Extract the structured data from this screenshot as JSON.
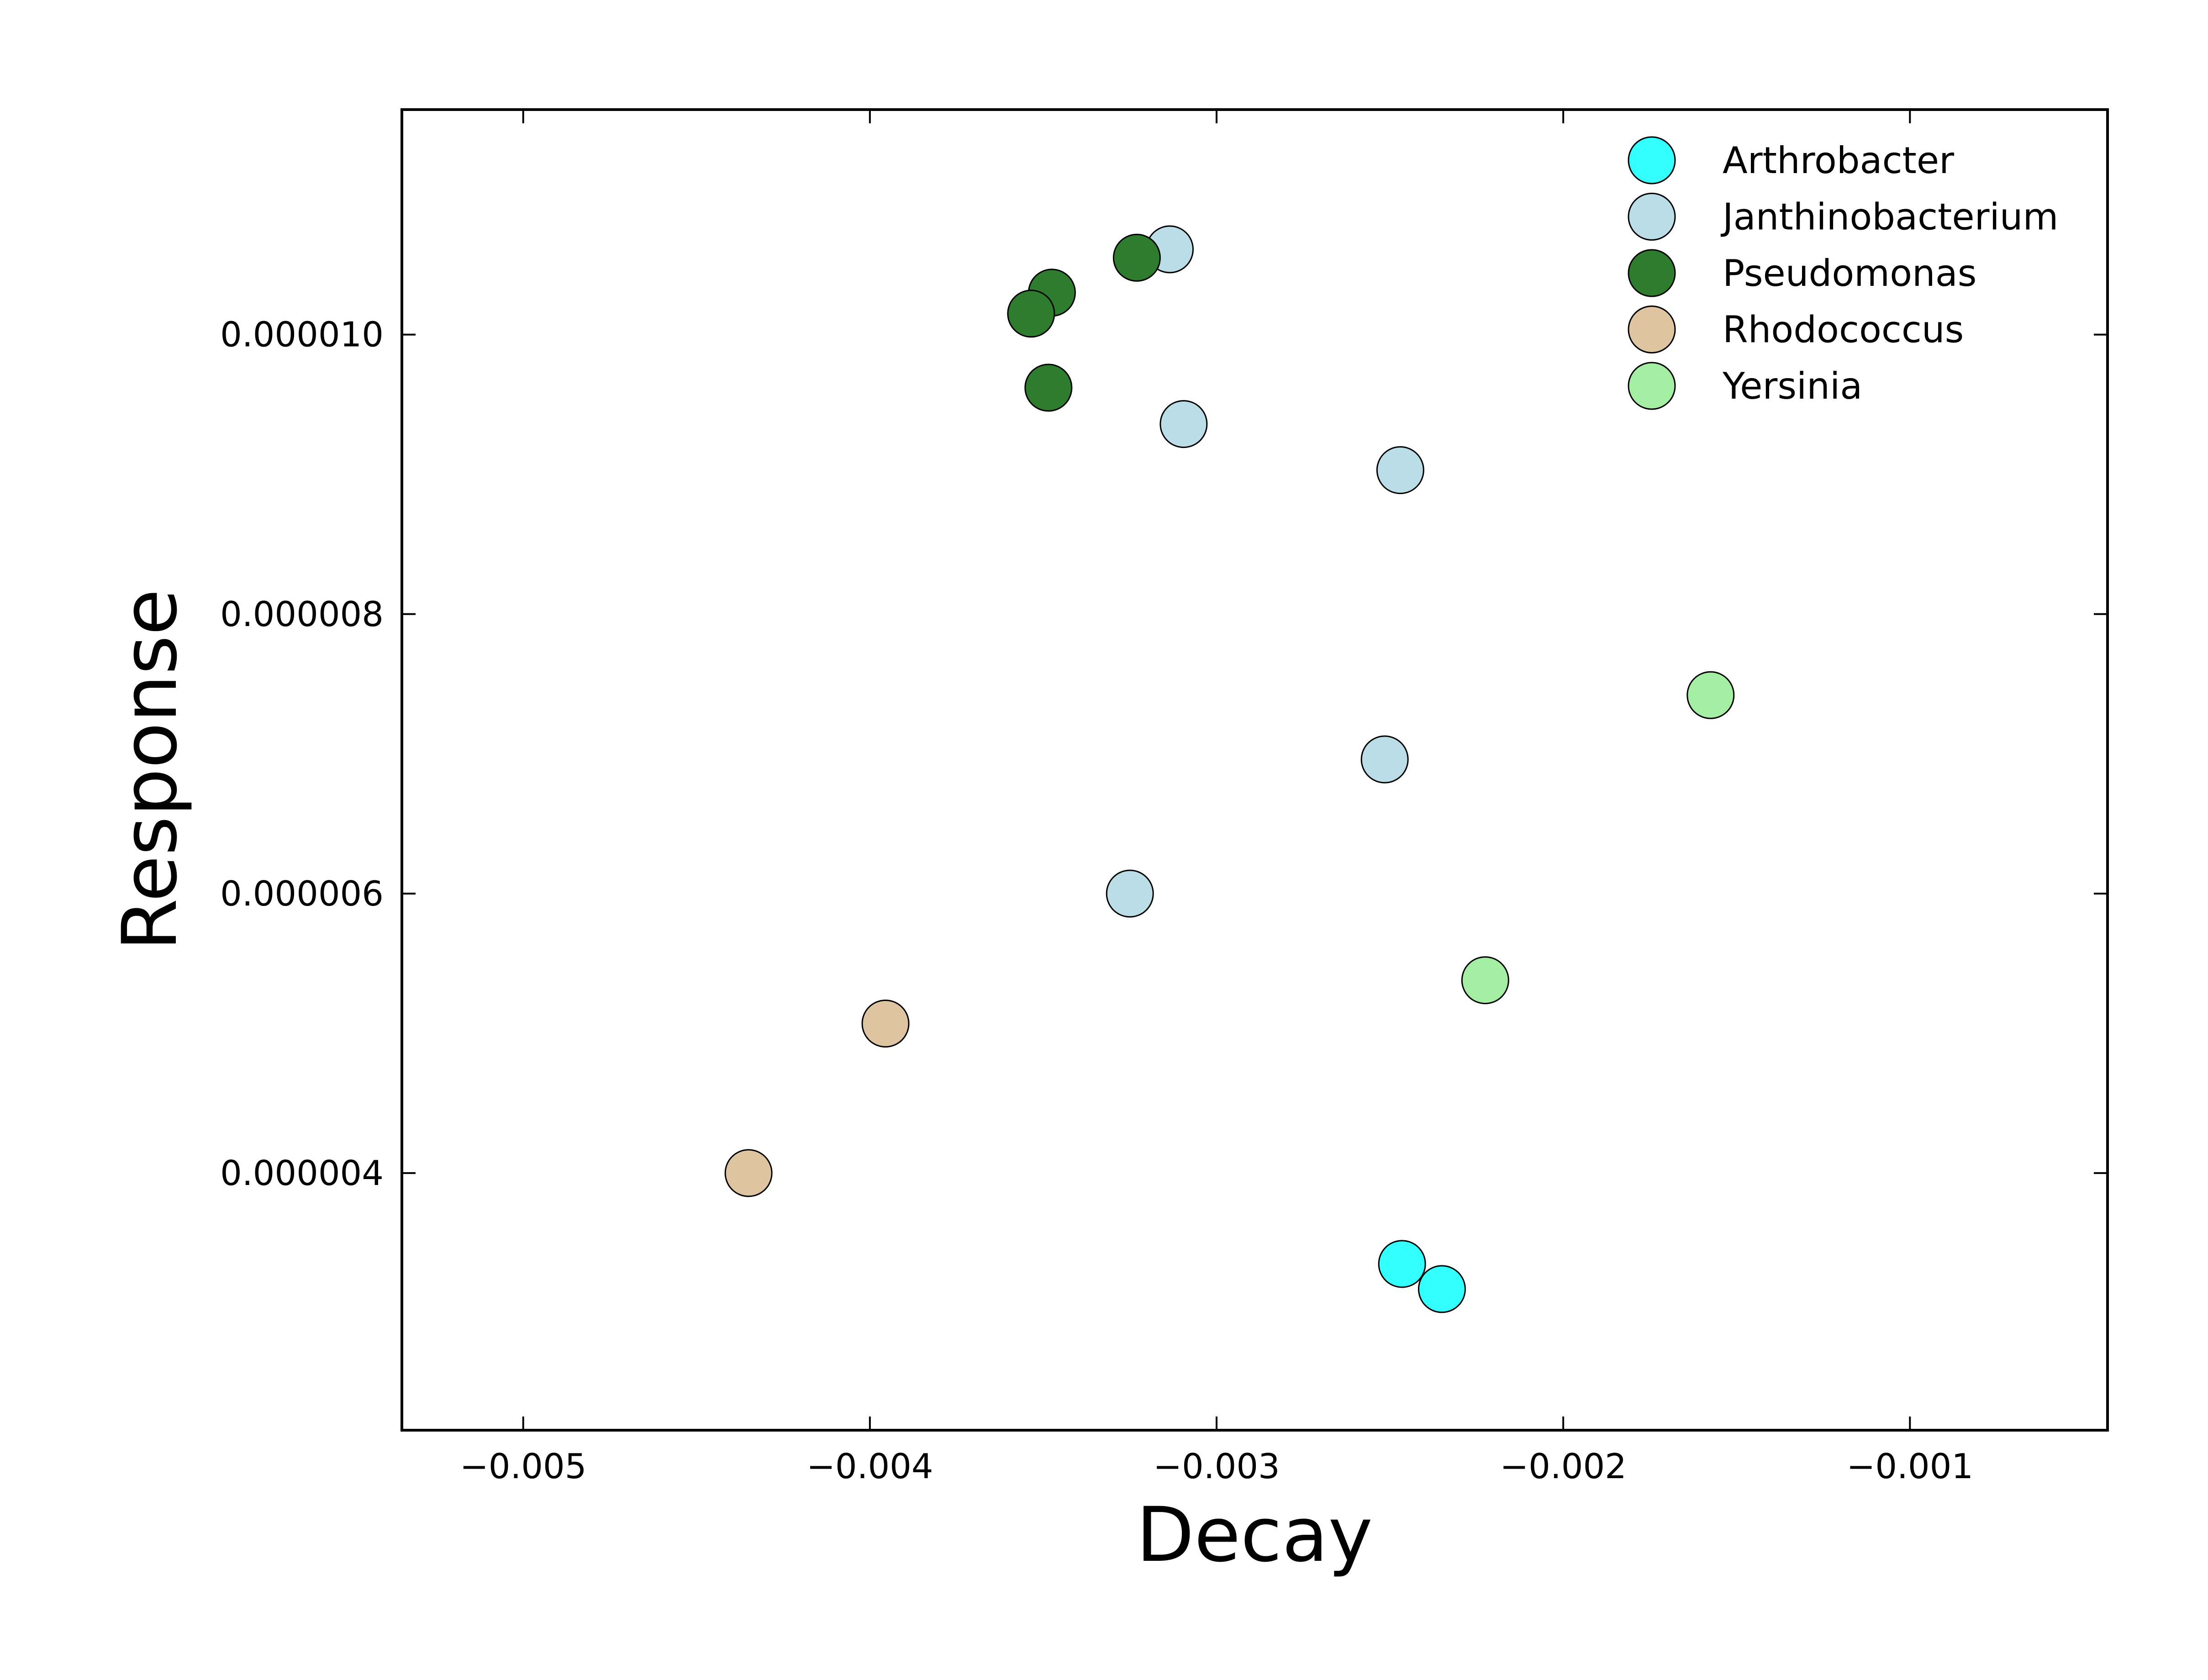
{
  "chart_data": {
    "type": "scatter",
    "title": "",
    "xlabel": "Decay",
    "ylabel": "Response",
    "xlim": [
      -0.00535,
      -0.00043
    ],
    "ylim": [
      2.16e-06,
      1.161e-05
    ],
    "grid": false,
    "legend_position": "top-right",
    "x_ticks": [
      -0.005,
      -0.004,
      -0.003,
      -0.002,
      -0.001
    ],
    "x_tick_labels": [
      "−0.005",
      "−0.004",
      "−0.003",
      "−0.002",
      "−0.001"
    ],
    "y_ticks": [
      4e-06,
      6e-06,
      8e-06,
      1e-05
    ],
    "y_tick_labels": [
      "0.000004",
      "0.000006",
      "0.000008",
      "0.000010"
    ],
    "series": [
      {
        "name": "Arthrobacter",
        "color": "#33ffff",
        "points": [
          {
            "x": -0.002465,
            "y": 3.35e-06
          },
          {
            "x": -0.00235,
            "y": 3.17e-06
          }
        ]
      },
      {
        "name": "Janthinobacterium",
        "color": "#bbdde8",
        "points": [
          {
            "x": -0.003135,
            "y": 1.061e-05
          },
          {
            "x": -0.003095,
            "y": 9.36e-06
          },
          {
            "x": -0.00247,
            "y": 9.03e-06
          },
          {
            "x": -0.002515,
            "y": 6.96e-06
          },
          {
            "x": -0.00325,
            "y": 6e-06
          }
        ]
      },
      {
        "name": "Pseudomonas",
        "color": "#2e7d2e",
        "points": [
          {
            "x": -0.00323,
            "y": 1.055e-05
          },
          {
            "x": -0.003475,
            "y": 1.03e-05
          },
          {
            "x": -0.003535,
            "y": 1.015e-05
          },
          {
            "x": -0.003485,
            "y": 9.62e-06
          }
        ]
      },
      {
        "name": "Rhodococcus",
        "color": "#dec4a0",
        "points": [
          {
            "x": -0.003955,
            "y": 5.07e-06
          },
          {
            "x": -0.00435,
            "y": 4e-06
          }
        ]
      },
      {
        "name": "Yersinia",
        "color": "#a4eea4",
        "points": [
          {
            "x": -0.001575,
            "y": 7.42e-06
          },
          {
            "x": -0.002225,
            "y": 5.38e-06
          }
        ]
      }
    ]
  }
}
